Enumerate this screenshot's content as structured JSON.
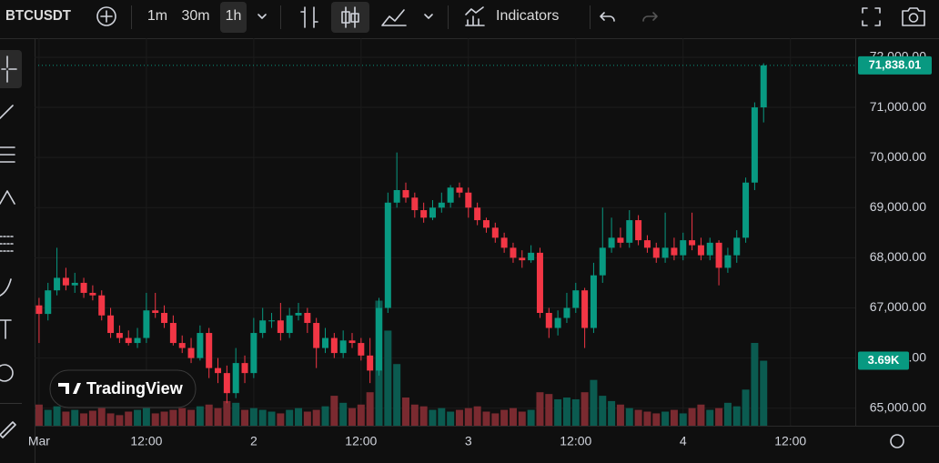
{
  "toolbar": {
    "symbol": "BTCUSDT",
    "intervals": [
      "1m",
      "30m",
      "1h"
    ],
    "indicators": "Indicators"
  },
  "watermark": "TradingView",
  "chart_data": {
    "type": "candlestick",
    "open": [
      67050,
      66880,
      67350,
      67600,
      67450,
      67500,
      67300,
      67250,
      66850,
      66500,
      66400,
      66300,
      66400,
      66950,
      66900,
      66700,
      66300,
      66200,
      66000,
      66500,
      65800,
      65700,
      65300,
      65900,
      65700,
      66500,
      66750,
      66750,
      66500,
      66850,
      66900,
      66700,
      66200,
      66400,
      66100,
      66350,
      66300,
      66050,
      65750,
      67000,
      69100,
      69350,
      69200,
      68950,
      68800,
      69000,
      69100,
      69400,
      69300,
      69000,
      68750,
      68600,
      68400,
      68200,
      68000,
      67950,
      68100,
      66900,
      66600,
      66800,
      67000,
      67350,
      66600,
      67650,
      68200,
      68400,
      68300,
      68750,
      68350,
      68200,
      68000,
      68200,
      68050,
      68350,
      68250,
      68050,
      68300,
      67800,
      68050,
      68400,
      69500,
      71000
    ],
    "high": [
      67200,
      67500,
      68200,
      67800,
      67700,
      67600,
      67450,
      67350,
      67000,
      66650,
      66550,
      66600,
      67300,
      67300,
      67050,
      66850,
      66450,
      66400,
      66650,
      66600,
      66000,
      65850,
      66200,
      66050,
      66800,
      67000,
      66900,
      67100,
      67000,
      67100,
      67000,
      66800,
      66600,
      66500,
      66550,
      66500,
      66400,
      66400,
      67200,
      69300,
      70100,
      69500,
      69300,
      69100,
      69150,
      69300,
      69450,
      69500,
      69400,
      69100,
      68800,
      68700,
      68500,
      68300,
      68150,
      68250,
      68200,
      67000,
      66950,
      67300,
      67500,
      67400,
      67900,
      69000,
      68800,
      68600,
      68950,
      68850,
      68450,
      68300,
      68900,
      68400,
      68500,
      68900,
      68400,
      68400,
      68350,
      68200,
      68550,
      69600,
      71100,
      71880
    ],
    "low": [
      66300,
      66750,
      67250,
      67350,
      67300,
      67200,
      67150,
      66750,
      66400,
      66300,
      66250,
      66200,
      66300,
      66800,
      66600,
      66250,
      66100,
      65900,
      65950,
      65600,
      65500,
      65100,
      65200,
      65500,
      65600,
      66400,
      66600,
      66350,
      66400,
      66750,
      66500,
      65800,
      66100,
      66000,
      66000,
      66200,
      65950,
      65500,
      65650,
      66900,
      69000,
      69100,
      68800,
      68700,
      68750,
      68900,
      69000,
      69200,
      68800,
      68650,
      68500,
      68300,
      68100,
      67900,
      67800,
      67900,
      66800,
      66400,
      66450,
      66700,
      66900,
      66200,
      66500,
      67500,
      68100,
      68200,
      68200,
      68250,
      68100,
      67900,
      67900,
      67950,
      67950,
      68150,
      67950,
      67950,
      67450,
      67700,
      67900,
      68300,
      69350,
      70700
    ],
    "close": [
      66880,
      67350,
      67600,
      67450,
      67500,
      67300,
      67250,
      66850,
      66500,
      66400,
      66300,
      66400,
      66950,
      66900,
      66700,
      66300,
      66200,
      66000,
      66500,
      65800,
      65700,
      65300,
      65900,
      65700,
      66500,
      66750,
      66750,
      66500,
      66850,
      66900,
      66700,
      66200,
      66400,
      66100,
      66350,
      66300,
      66050,
      65750,
      67000,
      69100,
      69350,
      69200,
      68950,
      68800,
      69000,
      69100,
      69400,
      69300,
      69000,
      68750,
      68600,
      68400,
      68200,
      68000,
      67950,
      68100,
      66900,
      66600,
      66800,
      67000,
      67350,
      66600,
      67650,
      68200,
      68400,
      68300,
      68750,
      68350,
      68200,
      68000,
      68200,
      68050,
      68350,
      68250,
      68050,
      68300,
      67800,
      68050,
      68400,
      69500,
      71000,
      71838.01
    ],
    "volume": [
      1200,
      900,
      1100,
      800,
      900,
      700,
      850,
      1000,
      700,
      600,
      800,
      900,
      1000,
      700,
      800,
      900,
      1000,
      900,
      1100,
      1200,
      1000,
      1400,
      1300,
      900,
      1000,
      900,
      800,
      700,
      900,
      1000,
      800,
      900,
      1100,
      1700,
      1300,
      1000,
      1200,
      1900,
      7100,
      5400,
      3500,
      1600,
      1200,
      1100,
      900,
      1000,
      800,
      900,
      1000,
      1100,
      800,
      700,
      900,
      1000,
      800,
      900,
      1900,
      1800,
      1500,
      1600,
      1500,
      1900,
      2600,
      1700,
      1400,
      1200,
      1000,
      900,
      800,
      700,
      800,
      900,
      700,
      1000,
      1200,
      900,
      1000,
      1300,
      1100,
      2050,
      4700,
      3690
    ],
    "up_color": "#089981",
    "down_color": "#f23645",
    "up_volume_color": "#0b5b50",
    "down_volume_color": "#7a2a30",
    "ylim": [
      64650,
      72380
    ],
    "yticks": [
      {
        "value": 65000,
        "label": "65,000.00"
      },
      {
        "value": 66000,
        "label": "66,000.00"
      },
      {
        "value": 67000,
        "label": "67,000.00"
      },
      {
        "value": 68000,
        "label": "68,000.00"
      },
      {
        "value": 69000,
        "label": "69,000.00"
      },
      {
        "value": 70000,
        "label": "70,000.00"
      },
      {
        "value": 71000,
        "label": "71,000.00"
      },
      {
        "value": 72000,
        "label": "72,000.00"
      }
    ],
    "xlim": [
      -0.5,
      91.25
    ],
    "xticks": [
      {
        "value": 0,
        "label": "Mar"
      },
      {
        "value": 12,
        "label": "12:00"
      },
      {
        "value": 24,
        "label": "2"
      },
      {
        "value": 36,
        "label": "12:00"
      },
      {
        "value": 48,
        "label": "3"
      },
      {
        "value": 60,
        "label": "12:00"
      },
      {
        "value": 72,
        "label": "4"
      },
      {
        "value": 84,
        "label": "12:00"
      }
    ],
    "volume_ylim": [
      0,
      22000
    ],
    "last_price": {
      "value": 71838.01,
      "label": "71,838.01"
    },
    "last_volume": {
      "value": 3690,
      "label": "3.69K"
    },
    "grid": true
  }
}
